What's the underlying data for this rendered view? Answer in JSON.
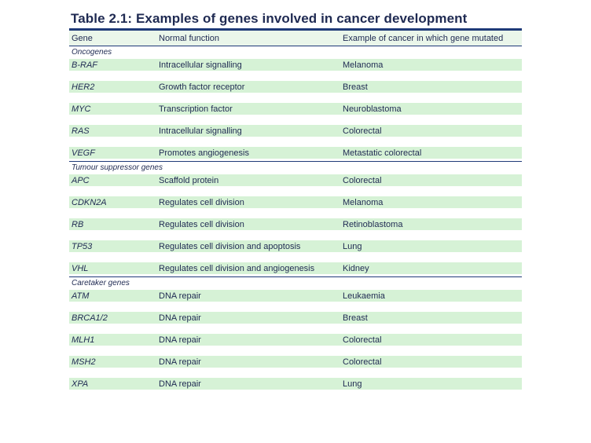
{
  "title": "Table 2.1: Examples of genes involved in cancer development",
  "header": {
    "gene": "Gene",
    "function": "Normal function",
    "cancer": "Example of cancer in which gene mutated"
  },
  "sections": [
    {
      "label": "Oncogenes",
      "rows": [
        {
          "gene": "B-RAF",
          "function": "Intracellular signalling",
          "cancer": "Melanoma"
        },
        {
          "gene": "HER2",
          "function": "Growth factor receptor",
          "cancer": "Breast"
        },
        {
          "gene": "MYC",
          "function": "Transcription factor",
          "cancer": "Neuroblastoma"
        },
        {
          "gene": "RAS",
          "function": "Intracellular signalling",
          "cancer": "Colorectal"
        },
        {
          "gene": "VEGF",
          "function": "Promotes angiogenesis",
          "cancer": "Metastatic colorectal"
        }
      ]
    },
    {
      "label": "Tumour suppressor genes",
      "rows": [
        {
          "gene": "APC",
          "function": "Scaffold protein",
          "cancer": "Colorectal"
        },
        {
          "gene": "CDKN2A",
          "function": "Regulates cell division",
          "cancer": "Melanoma"
        },
        {
          "gene": "RB",
          "function": "Regulates cell division",
          "cancer": "Retinoblastoma"
        },
        {
          "gene": "TP53",
          "function": "Regulates cell division and apoptosis",
          "cancer": "Lung"
        },
        {
          "gene": "VHL",
          "function": "Regulates cell division and angiogenesis",
          "cancer": "Kidney"
        }
      ]
    },
    {
      "label": "Caretaker genes",
      "rows": [
        {
          "gene": "ATM",
          "function": "DNA repair",
          "cancer": "Leukaemia"
        },
        {
          "gene": "BRCA1/2",
          "function": "DNA repair",
          "cancer": "Breast"
        },
        {
          "gene": "MLH1",
          "function": "DNA repair",
          "cancer": "Colorectal"
        },
        {
          "gene": "MSH2",
          "function": "DNA repair",
          "cancer": "Colorectal"
        },
        {
          "gene": "XPA",
          "function": "DNA repair",
          "cancer": "Lung"
        }
      ]
    }
  ]
}
